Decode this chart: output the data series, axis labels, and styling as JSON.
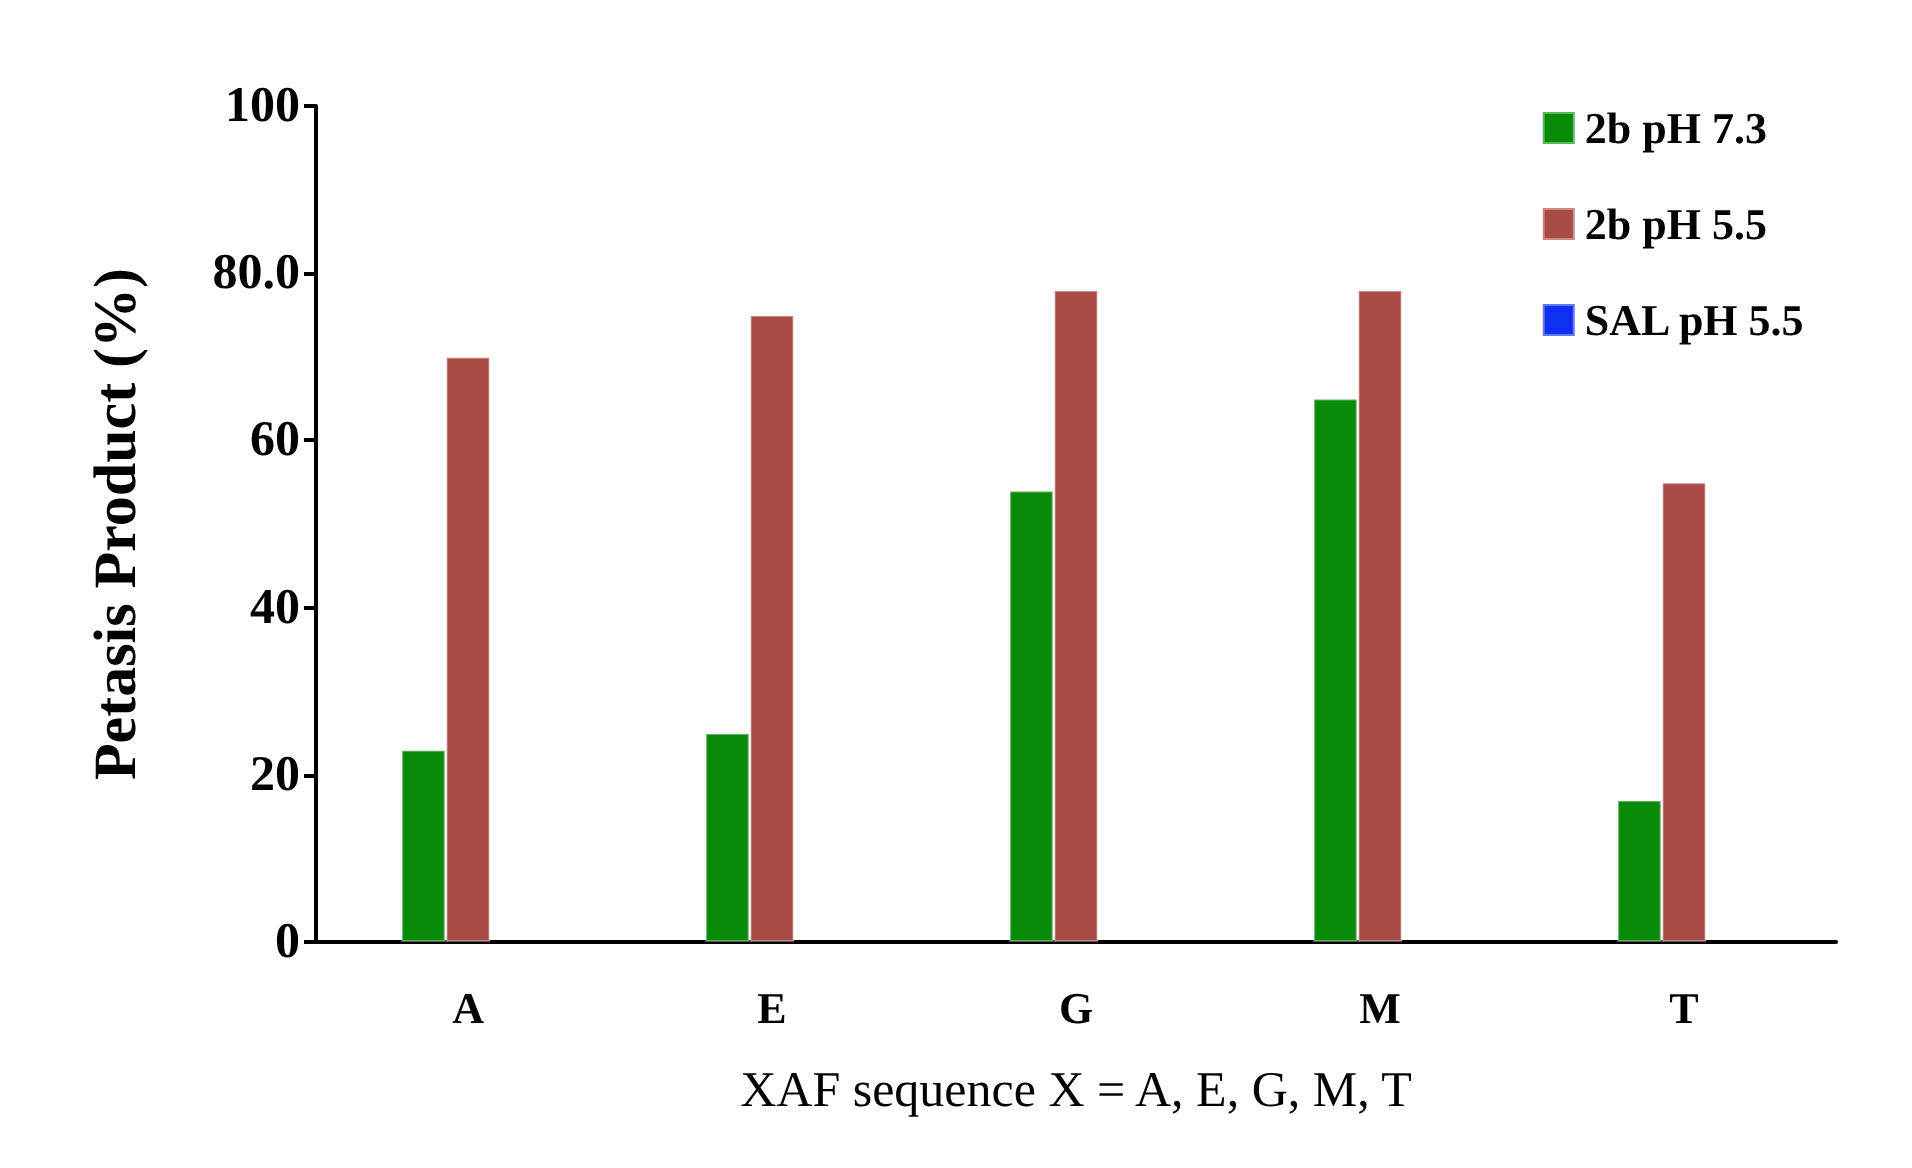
{
  "chart_data": {
    "type": "bar",
    "ylabel": "Petasis Product (%)",
    "xlabel": "XAF sequence X = A, E, G, M, T",
    "categories": [
      "A",
      "E",
      "G",
      "M",
      "T"
    ],
    "series": [
      {
        "name": "2b pH 7.3",
        "color": "#0a8a0a",
        "values": [
          23,
          25,
          54,
          65,
          17
        ]
      },
      {
        "name": "2b pH 5.5",
        "color": "#a84b45",
        "values": [
          70,
          75,
          78,
          78,
          55
        ]
      },
      {
        "name": "SAL pH 5.5",
        "color": "#1030f0",
        "values": [
          null,
          null,
          null,
          null,
          null
        ]
      }
    ],
    "ylim": [
      0,
      100
    ],
    "yticks": [
      0,
      20,
      40,
      60,
      {
        "value": 80,
        "label": "80.0"
      },
      100
    ],
    "grid": false,
    "legend": "top right"
  }
}
